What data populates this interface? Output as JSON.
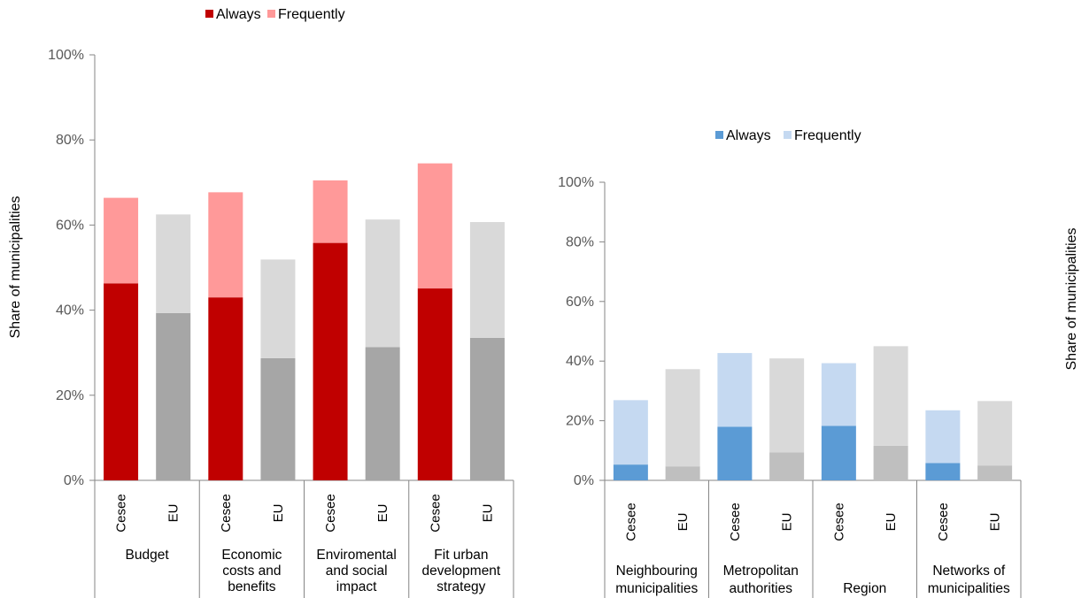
{
  "chart_data": [
    {
      "type": "bar",
      "stacked": true,
      "ylabel": "Share of municipalities",
      "ylim": [
        0,
        100
      ],
      "yticks": [
        "0%",
        "20%",
        "40%",
        "60%",
        "80%",
        "100%"
      ],
      "legend": {
        "placement": "top",
        "entries": [
          "Always",
          "Frequently"
        ]
      },
      "colors": {
        "cesee_always": "#c00000",
        "cesee_frequently": "#ff9999",
        "eu_always": "#a6a6a6",
        "eu_frequently": "#d9d9d9"
      },
      "groups": [
        {
          "label": [
            "Budget"
          ],
          "bars": [
            {
              "category": "Cesee",
              "always": 46.3,
              "frequently": 20.1
            },
            {
              "category": "EU",
              "always": 39.3,
              "frequently": 23.2
            }
          ]
        },
        {
          "label": [
            "Economic",
            "costs and",
            "benefits"
          ],
          "bars": [
            {
              "category": "Cesee",
              "always": 43.0,
              "frequently": 24.7
            },
            {
              "category": "EU",
              "always": 28.7,
              "frequently": 23.2
            }
          ]
        },
        {
          "label": [
            "Enviromental",
            "and social",
            "impact"
          ],
          "bars": [
            {
              "category": "Cesee",
              "always": 55.8,
              "frequently": 14.7
            },
            {
              "category": "EU",
              "always": 31.3,
              "frequently": 30.0
            }
          ]
        },
        {
          "label": [
            "Fit urban",
            "development",
            "strategy"
          ],
          "bars": [
            {
              "category": "Cesee",
              "always": 45.1,
              "frequently": 29.4
            },
            {
              "category": "EU",
              "always": 33.5,
              "frequently": 27.2
            }
          ]
        }
      ]
    },
    {
      "type": "bar",
      "stacked": true,
      "ylabel": "Share of municipalities",
      "ylim": [
        0,
        100
      ],
      "yticks": [
        "0%",
        "20%",
        "40%",
        "60%",
        "80%",
        "100%"
      ],
      "legend": {
        "placement": "top",
        "entries": [
          "Always",
          "Frequently"
        ]
      },
      "colors": {
        "cesee_always": "#5b9bd5",
        "cesee_frequently": "#c5d9f1",
        "eu_always": "#bfbfbf",
        "eu_frequently": "#d9d9d9"
      },
      "groups": [
        {
          "label": [
            "Neighbouring",
            "municipalities"
          ],
          "bars": [
            {
              "category": "Cesee",
              "always": 5.3,
              "frequently": 21.6
            },
            {
              "category": "EU",
              "always": 4.7,
              "frequently": 32.6
            }
          ]
        },
        {
          "label": [
            "Metropolitan",
            "authorities"
          ],
          "bars": [
            {
              "category": "Cesee",
              "always": 18.0,
              "frequently": 24.7
            },
            {
              "category": "EU",
              "always": 9.4,
              "frequently": 31.5
            }
          ]
        },
        {
          "label": [
            "Region"
          ],
          "bars": [
            {
              "category": "Cesee",
              "always": 18.3,
              "frequently": 21.0
            },
            {
              "category": "EU",
              "always": 11.6,
              "frequently": 33.4
            }
          ]
        },
        {
          "label": [
            "Networks of",
            "municipalities"
          ],
          "bars": [
            {
              "category": "Cesee",
              "always": 5.8,
              "frequently": 17.7
            },
            {
              "category": "EU",
              "always": 5.0,
              "frequently": 21.6
            }
          ]
        }
      ]
    }
  ]
}
